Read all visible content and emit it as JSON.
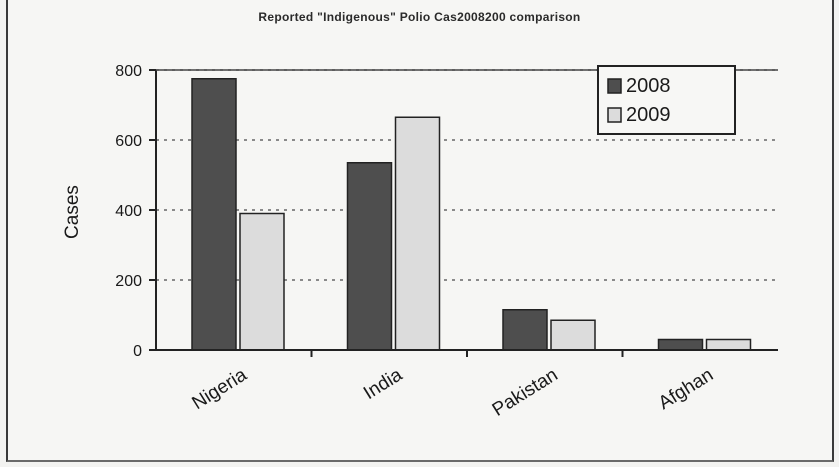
{
  "chart_data": {
    "type": "bar",
    "title": "Reported \"Indigenous\" Polio Cas2008200 comparison",
    "categories": [
      "Nigeria",
      "India",
      "Pakistan",
      "Afghan"
    ],
    "series": [
      {
        "name": "2008",
        "values": [
          775,
          535,
          115,
          30
        ],
        "color": "#4e4e4e"
      },
      {
        "name": "2009",
        "values": [
          390,
          665,
          85,
          30
        ],
        "color": "#dcdcdc"
      }
    ],
    "xlabel": "",
    "ylabel": "Cases",
    "ylim": [
      0,
      800
    ],
    "yticks": [
      0,
      200,
      400,
      600,
      800
    ],
    "grid": true,
    "legend_position": "top-right"
  }
}
